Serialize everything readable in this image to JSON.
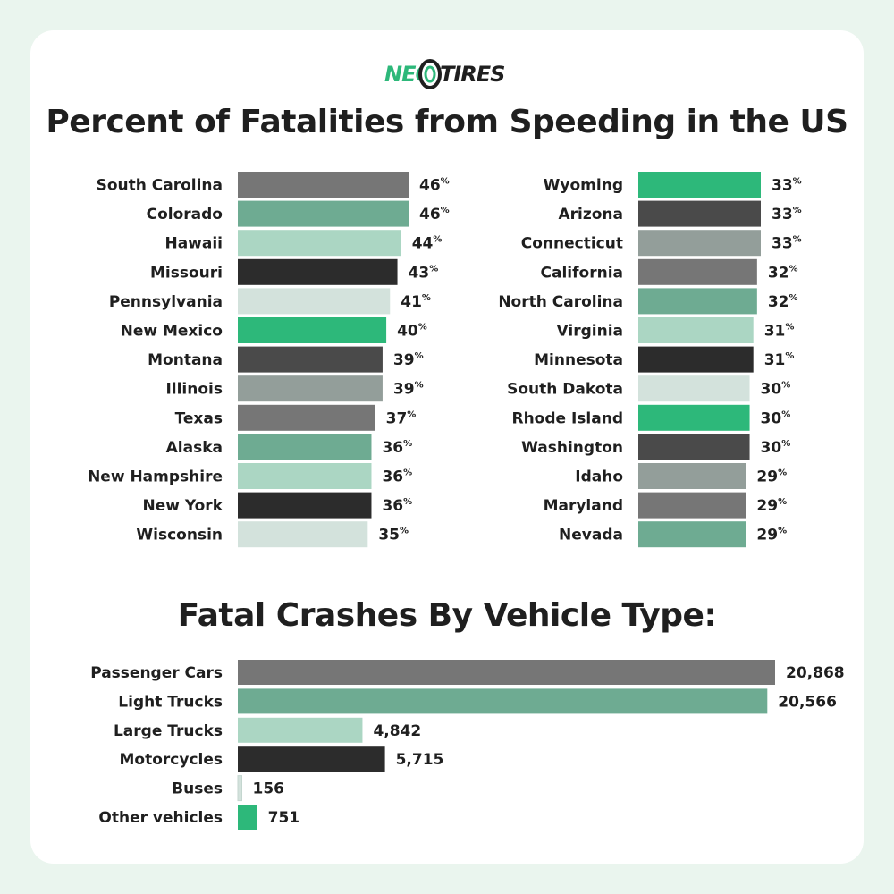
{
  "brand": {
    "logo_left": "NEO",
    "logo_right": "TIRES"
  },
  "colors": {
    "background": "#eaf5ee",
    "card": "#ffffff",
    "text": "#1f1f1f",
    "palette": [
      "#767676",
      "#6eab92",
      "#abd6c3",
      "#2c2c2c",
      "#d3e2dc",
      "#2db87a",
      "#4a4a4a",
      "#939e9a"
    ]
  },
  "chart_data": [
    {
      "type": "bar",
      "orientation": "horizontal",
      "title": "Percent of Fatalities from Speeding in the US",
      "unit": "%",
      "categories": [
        "South Carolina",
        "Colorado",
        "Hawaii",
        "Missouri",
        "Pennsylvania",
        "New Mexico",
        "Montana",
        "Illinois",
        "Texas",
        "Alaska",
        "New Hampshire",
        "New York",
        "Wisconsin"
      ],
      "values": [
        46,
        46,
        44,
        43,
        41,
        40,
        39,
        39,
        37,
        36,
        36,
        36,
        35
      ],
      "colors": [
        "#767676",
        "#6eab92",
        "#abd6c3",
        "#2c2c2c",
        "#d3e2dc",
        "#2db87a",
        "#4a4a4a",
        "#939e9a",
        "#767676",
        "#6eab92",
        "#abd6c3",
        "#2c2c2c",
        "#d3e2dc"
      ]
    },
    {
      "type": "bar",
      "orientation": "horizontal",
      "unit": "%",
      "categories": [
        "Wyoming",
        "Arizona",
        "Connecticut",
        "California",
        "North Carolina",
        "Virginia",
        "Minnesota",
        "South Dakota",
        "Rhode Island",
        "Washington",
        "Idaho",
        "Maryland",
        "Nevada"
      ],
      "values": [
        33,
        33,
        33,
        32,
        32,
        31,
        31,
        30,
        30,
        30,
        29,
        29,
        29
      ],
      "colors": [
        "#2db87a",
        "#4a4a4a",
        "#939e9a",
        "#767676",
        "#6eab92",
        "#abd6c3",
        "#2c2c2c",
        "#d3e2dc",
        "#2db87a",
        "#4a4a4a",
        "#939e9a",
        "#767676",
        "#6eab92"
      ]
    },
    {
      "type": "bar",
      "orientation": "horizontal",
      "title": "Fatal Crashes By Vehicle Type:",
      "categories": [
        "Passenger Cars",
        "Light Trucks",
        "Large Trucks",
        "Motorcycles",
        "Buses",
        "Other vehicles"
      ],
      "values": [
        20868,
        20566,
        4842,
        5715,
        156,
        751
      ],
      "value_labels": [
        "20,868",
        "20,566",
        "4,842",
        "5,715",
        "156",
        "751"
      ],
      "colors": [
        "#767676",
        "#6eab92",
        "#abd6c3",
        "#2c2c2c",
        "#d3e2dc",
        "#2db87a"
      ]
    }
  ]
}
